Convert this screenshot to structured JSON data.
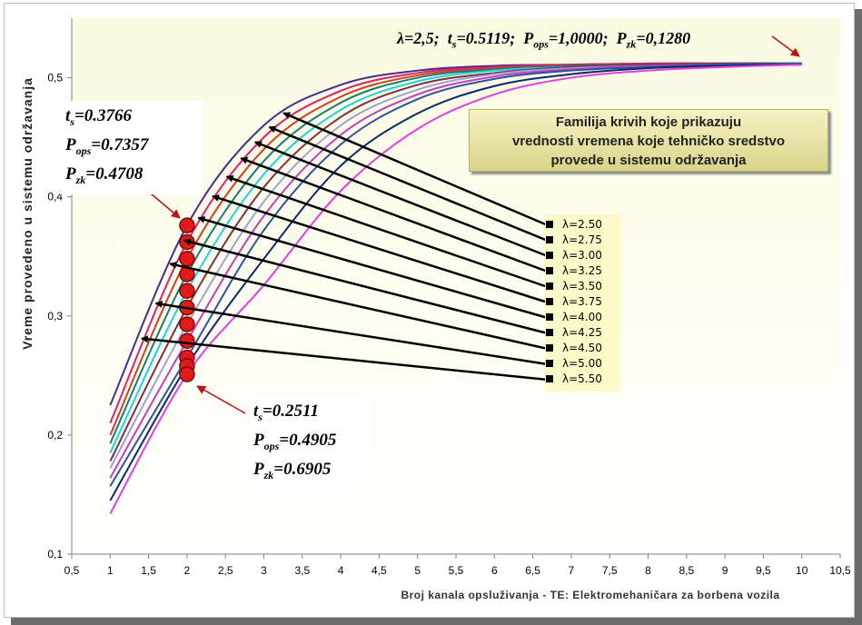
{
  "chart_data": {
    "type": "line",
    "title": "",
    "xlabel": "Broj kanala opsluživanja - TE: Elektromehaničara za borbena vozila",
    "ylabel": "Vreme provedeno u sistemu održavanja",
    "xlim": [
      0.5,
      10.5
    ],
    "ylim": [
      0.1,
      0.55
    ],
    "xticks": [
      "0,5",
      "1",
      "1,5",
      "2",
      "2,5",
      "3",
      "3,5",
      "4",
      "4,5",
      "5",
      "5,5",
      "6",
      "6,5",
      "7",
      "7,5",
      "8",
      "8,5",
      "9",
      "9,5",
      "10",
      "10,5"
    ],
    "yticks": [
      "0,1",
      "0,2",
      "0,3",
      "0,4",
      "0,5"
    ],
    "grid": false,
    "legend_position": "right",
    "x": [
      1,
      2,
      3,
      4,
      5,
      6,
      7,
      8,
      9,
      10
    ],
    "series": [
      {
        "name": "λ=2.50",
        "color": "#4b2a8c",
        "values": [
          0.225,
          0.376,
          0.46,
          0.494,
          0.506,
          0.51,
          0.511,
          0.512,
          0.512,
          0.512
        ]
      },
      {
        "name": "λ=2.75",
        "color": "#e0206c",
        "values": [
          0.21,
          0.362,
          0.45,
          0.489,
          0.504,
          0.509,
          0.511,
          0.512,
          0.512,
          0.512
        ]
      },
      {
        "name": "λ=3.00",
        "color": "#d04020",
        "values": [
          0.2,
          0.348,
          0.44,
          0.484,
          0.502,
          0.508,
          0.51,
          0.511,
          0.512,
          0.512
        ]
      },
      {
        "name": "λ=3.25",
        "color": "#1a7a7a",
        "values": [
          0.193,
          0.335,
          0.43,
          0.479,
          0.5,
          0.507,
          0.51,
          0.511,
          0.512,
          0.512
        ]
      },
      {
        "name": "λ=3.50",
        "color": "#20d0e0",
        "values": [
          0.185,
          0.321,
          0.419,
          0.473,
          0.497,
          0.506,
          0.509,
          0.511,
          0.512,
          0.512
        ]
      },
      {
        "name": "λ=3.75",
        "color": "#7a3040",
        "values": [
          0.178,
          0.307,
          0.408,
          0.467,
          0.494,
          0.504,
          0.509,
          0.511,
          0.512,
          0.512
        ]
      },
      {
        "name": "λ=4.00",
        "color": "#a0a0d8",
        "values": [
          0.172,
          0.293,
          0.396,
          0.46,
          0.49,
          0.503,
          0.508,
          0.51,
          0.511,
          0.512
        ]
      },
      {
        "name": "λ=4.25",
        "color": "#c040c0",
        "values": [
          0.164,
          0.279,
          0.384,
          0.452,
          0.486,
          0.501,
          0.507,
          0.51,
          0.511,
          0.512
        ]
      },
      {
        "name": "λ=4.50",
        "color": "#3050a0",
        "values": [
          0.157,
          0.265,
          0.372,
          0.444,
          0.482,
          0.499,
          0.506,
          0.509,
          0.511,
          0.512
        ]
      },
      {
        "name": "λ=5.00",
        "color": "#0a2a6a",
        "values": [
          0.145,
          0.258,
          0.348,
          0.426,
          0.47,
          0.493,
          0.503,
          0.508,
          0.51,
          0.511
        ]
      },
      {
        "name": "λ=5.50",
        "color": "#e040e0",
        "values": [
          0.134,
          0.251,
          0.326,
          0.405,
          0.457,
          0.486,
          0.5,
          0.506,
          0.509,
          0.511
        ]
      }
    ]
  },
  "annotations": {
    "top_note": {
      "lambda": "λ=2,5;",
      "ts": "t",
      "ts_sub": "s",
      "ts_val": "=0.5119;",
      "pops": "P",
      "pops_sub": "ops",
      "pops_val": "=1,0000;",
      "pzk": "P",
      "pzk_sub": "zk",
      "pzk_val": "=0,1280"
    },
    "upper_note": {
      "t": "t",
      "t_sub": "s",
      "t_val": "=0.3766",
      "p1": "P",
      "p1_sub": "ops",
      "p1_val": "=0.7357",
      "p2": "P",
      "p2_sub": "zk",
      "p2_val": "=0.4708"
    },
    "lower_note": {
      "t": "t",
      "t_sub": "s",
      "t_val": "=0.2511",
      "p1": "P",
      "p1_sub": "ops",
      "p1_val": "=0.4905",
      "p2": "P",
      "p2_sub": "zk",
      "p2_val": "=0.6905"
    },
    "title_box": [
      "Familija krivih koje prikazuju",
      "vrednosti vremena koje tehničko sredstvo",
      "provede u sistemu održavanja"
    ]
  },
  "colors": {
    "plot_bg": "#fdfde8",
    "marker_fill": "#e31a1a",
    "marker_stroke": "#7a0a0a",
    "legend_bg": "#fdf9c8"
  }
}
